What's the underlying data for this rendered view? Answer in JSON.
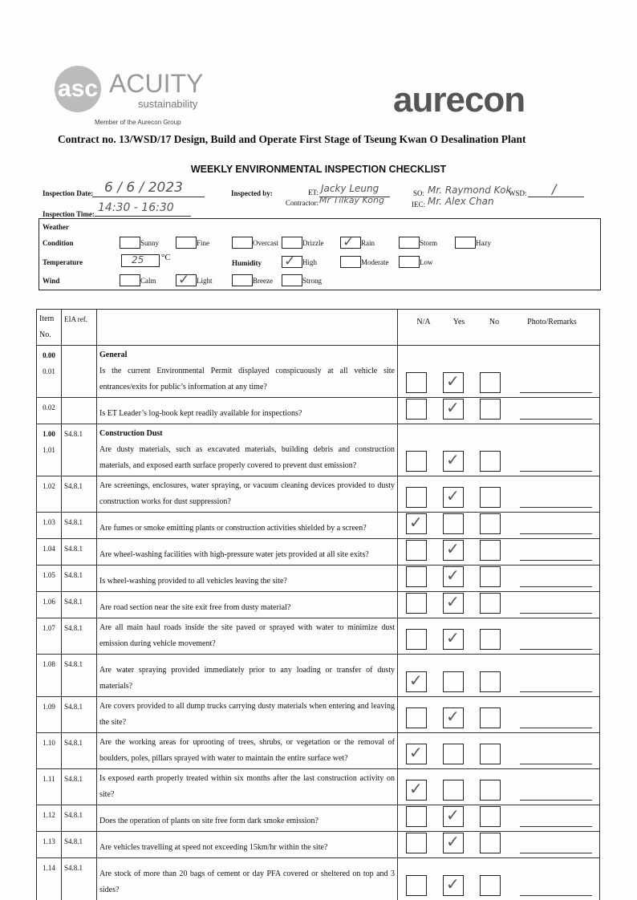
{
  "header": {
    "acuity_name": "ACUITY",
    "acuity_sub": "sustainability",
    "acuity_member": "Member of the Aurecon Group",
    "aurecon": "aurecon",
    "contract": "Contract no.  13/WSD/17 Design, Build and Operate First Stage of Tseung Kwan O Desalination Plant",
    "title": "WEEKLY ENVIRONMENTAL INSPECTION CHECKLIST"
  },
  "info": {
    "date_label": "Inspection Date:",
    "date_value": "6 / 6 / 2023",
    "time_label": "Inspection Time:",
    "time_value": "14:30 - 16:30",
    "inspected_by": "Inspected by:",
    "et_label": "ET:",
    "et_value": "Jacky Leung",
    "contractor_label": "Contractor:",
    "contractor_value": "Mr Tilkay Kong",
    "so_label": "SO:",
    "so_value": "Mr. Raymond Kok",
    "wsd_label": "WSD:",
    "wsd_value": "/",
    "iec_label": "IEC:",
    "iec_value": "Mr. Alex Chan"
  },
  "weather": {
    "title": "Weather",
    "condition_label": "Condition",
    "temperature_label": "Temperature",
    "temperature_value": "25",
    "temp_unit": "°C",
    "humidity_label": "Humidity",
    "wind_label": "Wind",
    "conditions": [
      {
        "label": "Sunny",
        "checked": false
      },
      {
        "label": "Fine",
        "checked": false
      },
      {
        "label": "Overcast",
        "checked": false
      },
      {
        "label": "Drizzle",
        "checked": false
      },
      {
        "label": "Rain",
        "checked": true
      },
      {
        "label": "Storm",
        "checked": false
      },
      {
        "label": "Hazy",
        "checked": false
      }
    ],
    "humidity": [
      {
        "label": "High",
        "checked": true
      },
      {
        "label": "Moderate",
        "checked": false
      },
      {
        "label": "Low",
        "checked": false
      }
    ],
    "wind": [
      {
        "label": "Calm",
        "checked": false
      },
      {
        "label": "Light",
        "checked": true
      },
      {
        "label": "Breeze",
        "checked": false
      },
      {
        "label": "Strong",
        "checked": false
      }
    ]
  },
  "table": {
    "headers": {
      "item": "Item No.",
      "eia": "EIA ref.",
      "na": "N/A",
      "yes": "Yes",
      "no": "No",
      "remarks": "Photo/Remarks"
    },
    "rows": [
      {
        "item": "0.00",
        "item2": "0.01",
        "eia": "",
        "section": "General",
        "text": "Is the current Environmental Permit displayed conspicuously at all vehicle site entrances/exits for public’s information at any time?",
        "answer": "yes"
      },
      {
        "item": "0.02",
        "eia": "",
        "text": "Is ET Leader’s log-book kept readily available for inspections?",
        "answer": "yes"
      },
      {
        "item": "1.00",
        "item2": "1.01",
        "eia": "S4.8.1",
        "section": "Construction Dust",
        "text": "Are dusty materials, such as excavated materials, building debris and construction materials, and exposed earth surface properly covered to prevent dust emission?",
        "answer": "yes"
      },
      {
        "item": "1.02",
        "eia": "S4.8.1",
        "text": "Are screenings, enclosures, water spraying, or vacuum cleaning devices provided to dusty construction works for dust suppression?",
        "answer": "yes"
      },
      {
        "item": "1.03",
        "eia": "S4.8.1",
        "text": "Are fumes or smoke emitting plants or construction activities shielded by a screen?",
        "answer": "na"
      },
      {
        "item": "1.04",
        "eia": "S4.8.1",
        "text": "Are wheel-washing facilities with high-pressure water jets provided at all site exits?",
        "answer": "yes"
      },
      {
        "item": "1.05",
        "eia": "S4.8.1",
        "text": "Is wheel-washing provided to all vehicles leaving the site?",
        "answer": "yes"
      },
      {
        "item": "1.06",
        "eia": "S4.8.1",
        "text": "Are road section near the site exit free from dusty material?",
        "answer": "yes"
      },
      {
        "item": "1.07",
        "eia": "S4.8.1",
        "text": "Are all main haul roads inside the site paved or sprayed with water to minimize dust emission during vehicle movement?",
        "answer": "yes"
      },
      {
        "item": "1.08",
        "eia": "S4.8.1",
        "text": "Are water spraying provided immediately prior to any loading or transfer of dusty materials?",
        "answer": "na"
      },
      {
        "item": "1.09",
        "eia": "S4.8.1",
        "text": "Are covers provided to all dump trucks carrying dusty materials when entering and leaving the site?",
        "answer": "yes"
      },
      {
        "item": "1.10",
        "eia": "S4.8.1",
        "text": "Are the working areas for uprooting of trees, shrubs, or vegetation or the removal of boulders, poles, pillars sprayed with water to maintain the entire surface wet?",
        "answer": "na"
      },
      {
        "item": "1.11",
        "eia": "S4.8.1",
        "text": "Is exposed earth properly treated within six months after the last construction activity on site?",
        "answer": "na"
      },
      {
        "item": "1.12",
        "eia": "S4.8.1",
        "text": "Does the operation of plants on site free form dark smoke emission?",
        "answer": "yes"
      },
      {
        "item": "1.13",
        "eia": "S4.8.1",
        "text": "Are vehicles travelling at speed not exceeding 15km/hr within the site?",
        "answer": "yes"
      },
      {
        "item": "1.14",
        "eia": "S4.8.1",
        "text": "Are stock of more than 20 bags of cement or day PFA covered or sheltered on top and 3 sides?",
        "answer": "yes"
      }
    ]
  },
  "check_icon": "✓"
}
